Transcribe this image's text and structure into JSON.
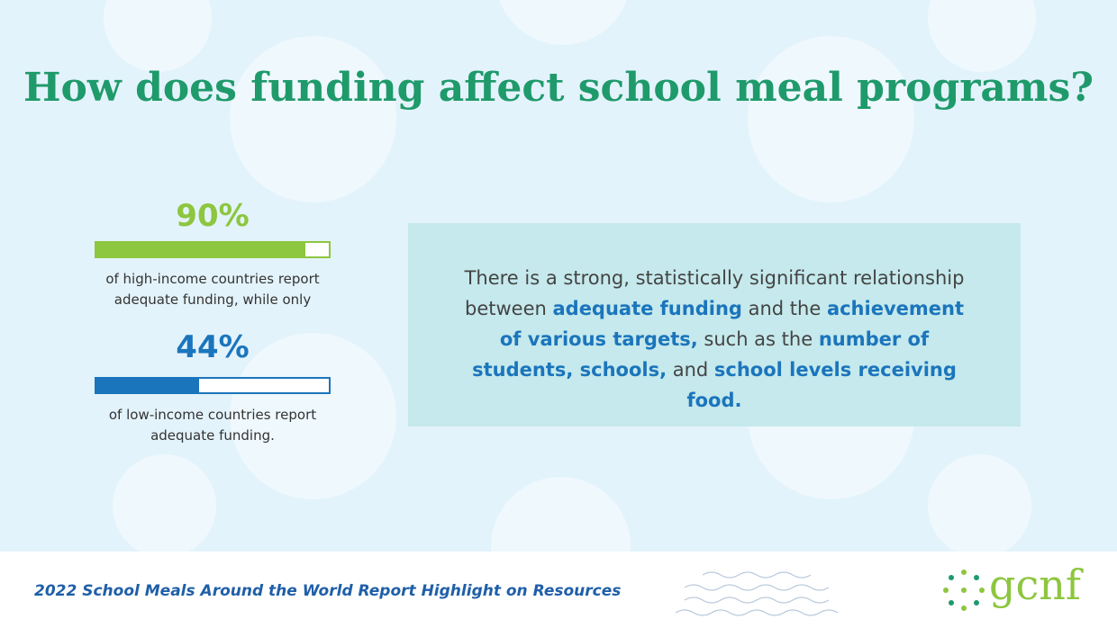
{
  "header": {
    "title": "How does funding affect school meal programs?"
  },
  "bars": {
    "values": [
      90,
      44
    ],
    "value_labels": [
      "90%",
      "44%"
    ],
    "range": [
      0,
      100
    ],
    "colors": [
      "#8dc63f",
      "#1b75bc"
    ],
    "captions": [
      [
        "of high-income countries report",
        "adequate funding, while only"
      ],
      [
        "of low-income countries report",
        "adequate funding."
      ]
    ]
  },
  "callout": {
    "segments": [
      {
        "text": "There is a strong, statistically significant relationship between ",
        "emphasis": false
      },
      {
        "text": "adequate funding",
        "emphasis": true
      },
      {
        "text": " and the ",
        "emphasis": false
      },
      {
        "text": "achievement of various targets,",
        "emphasis": true
      },
      {
        "text": " such as the ",
        "emphasis": false
      },
      {
        "text": "number of students, schools,",
        "emphasis": true
      },
      {
        "text": " and ",
        "emphasis": false
      },
      {
        "text": "school levels receiving food.",
        "emphasis": true
      }
    ]
  },
  "footer": {
    "caption": "2022 School Meals Around the World Report Highlight on Resources",
    "logo": "gcnf"
  }
}
